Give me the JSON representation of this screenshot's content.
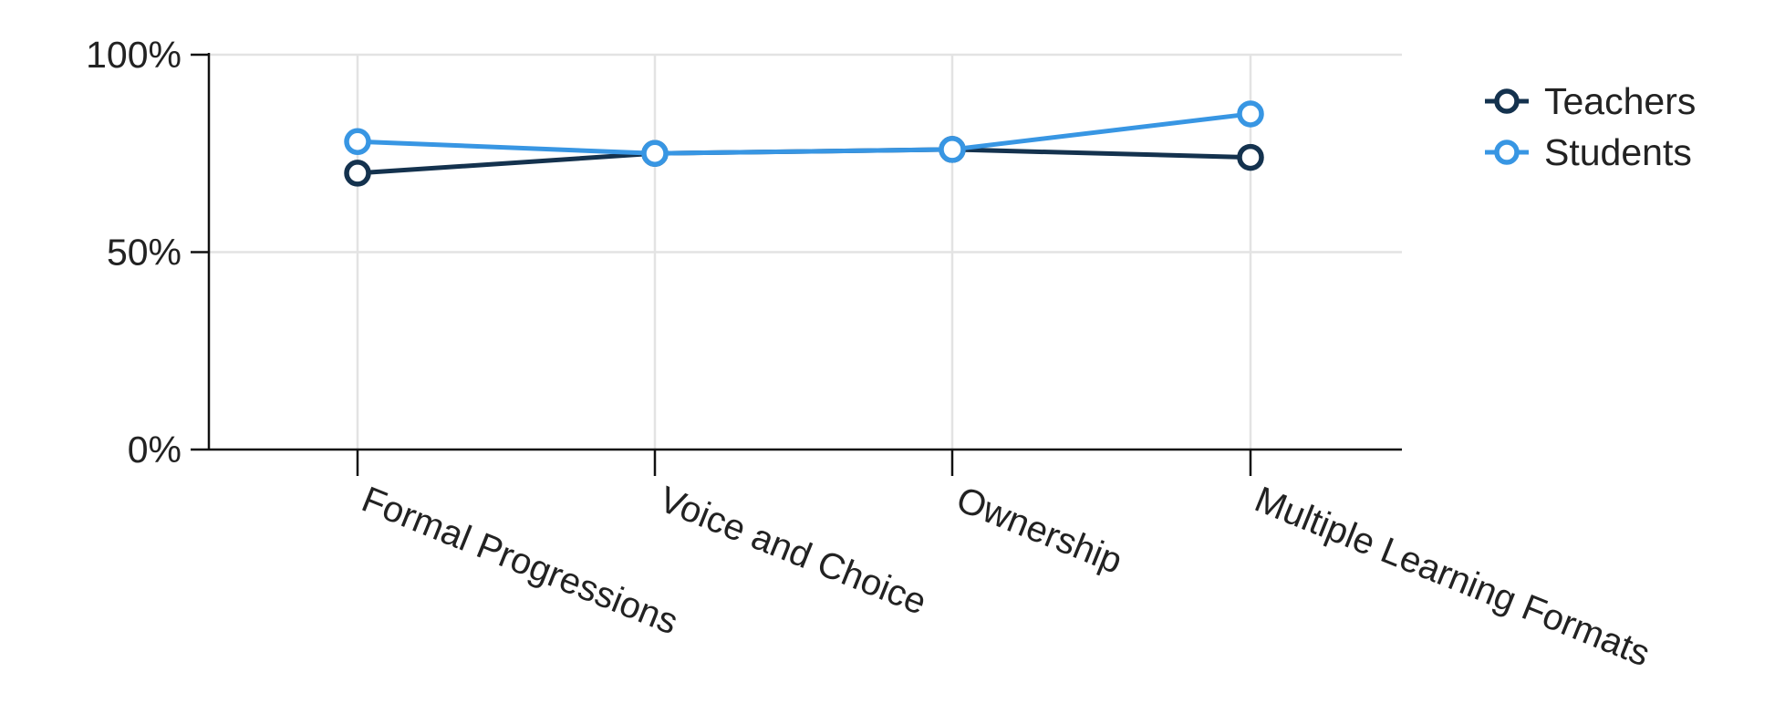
{
  "chart_data": {
    "type": "line",
    "categories": [
      "Formal Progressions",
      "Voice and Choice",
      "Ownership",
      "Multiple Learning Formats"
    ],
    "series": [
      {
        "name": "Teachers",
        "values": [
          70,
          75,
          76,
          74
        ],
        "color": "#14324e"
      },
      {
        "name": "Students",
        "values": [
          78,
          75,
          76,
          85
        ],
        "color": "#3896e3"
      }
    ],
    "y_ticks": [
      "0%",
      "50%",
      "100%"
    ],
    "ylim": [
      0,
      100
    ],
    "grid": true,
    "legend": "top-right",
    "title": "",
    "xlabel": "",
    "ylabel": ""
  }
}
